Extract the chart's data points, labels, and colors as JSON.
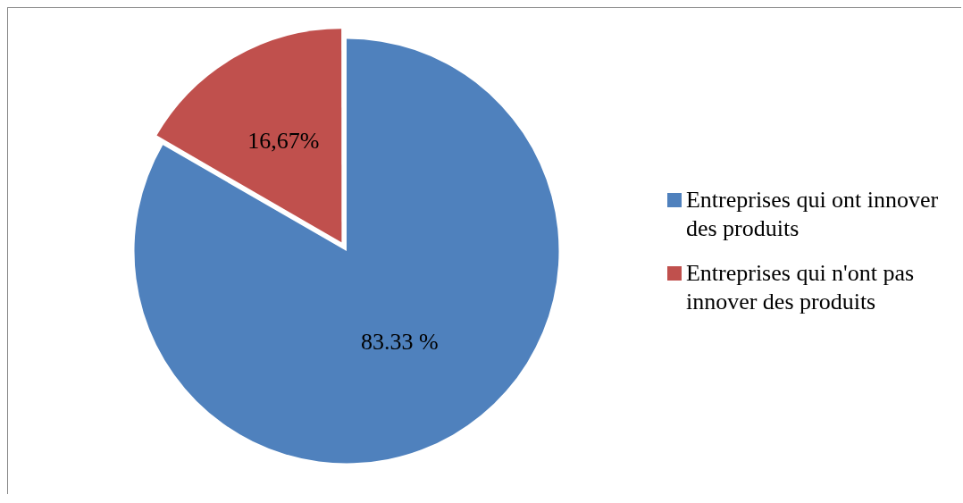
{
  "chart_data": {
    "type": "pie",
    "categories": [
      "Entreprises qui ont innover des produits",
      "Entreprises qui n'ont pas innover des produits"
    ],
    "values": [
      83.33,
      16.67
    ],
    "colors": [
      "#4f81bd",
      "#c0504d"
    ],
    "value_labels": [
      "83.33 %",
      "16,67%"
    ],
    "legend": "right"
  }
}
